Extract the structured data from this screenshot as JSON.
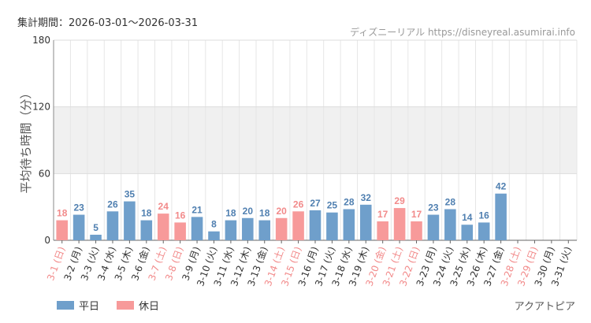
{
  "header": {
    "period": "集計期間：2026-03-01～2026-03-31",
    "credit": "ディズニーリアル https://disneyreal.asumirai.info"
  },
  "legend": {
    "weekday": "平日",
    "holiday": "休日"
  },
  "attraction": "アクアトピア",
  "colors": {
    "weekday": "#6f9fcb",
    "holiday": "#f79a9a",
    "weekday_label": "#4f7fb0",
    "holiday_label": "#f28a8a",
    "band": "#f0f0f0"
  },
  "chart_data": {
    "type": "bar",
    "ylabel": "平均待ち時間（分）",
    "ylim": [
      0,
      180
    ],
    "yticks": [
      0,
      60,
      120,
      180
    ],
    "shaded_band": [
      60,
      120
    ],
    "categories": [
      "3-1 (日)",
      "3-2 (月)",
      "3-3 (火)",
      "3-4 (水)",
      "3-5 (木)",
      "3-6 (金)",
      "3-7 (土)",
      "3-8 (日)",
      "3-9 (月)",
      "3-10 (火)",
      "3-11 (水)",
      "3-12 (木)",
      "3-13 (金)",
      "3-14 (土)",
      "3-15 (日)",
      "3-16 (月)",
      "3-17 (火)",
      "3-18 (水)",
      "3-19 (木)",
      "3-20 (金)",
      "3-21 (土)",
      "3-22 (日)",
      "3-23 (月)",
      "3-24 (火)",
      "3-25 (水)",
      "3-26 (木)",
      "3-27 (金)",
      "3-28 (土)",
      "3-29 (日)",
      "3-30 (月)",
      "3-31 (火)"
    ],
    "values": [
      18,
      23,
      5,
      26,
      35,
      18,
      24,
      16,
      21,
      8,
      18,
      20,
      18,
      20,
      26,
      27,
      25,
      28,
      32,
      17,
      29,
      17,
      23,
      28,
      14,
      16,
      42,
      null,
      null,
      null,
      null
    ],
    "holiday": [
      true,
      false,
      false,
      false,
      false,
      false,
      true,
      true,
      false,
      false,
      false,
      false,
      false,
      true,
      true,
      false,
      false,
      false,
      false,
      true,
      true,
      true,
      false,
      false,
      false,
      false,
      false,
      true,
      true,
      false,
      false
    ]
  }
}
